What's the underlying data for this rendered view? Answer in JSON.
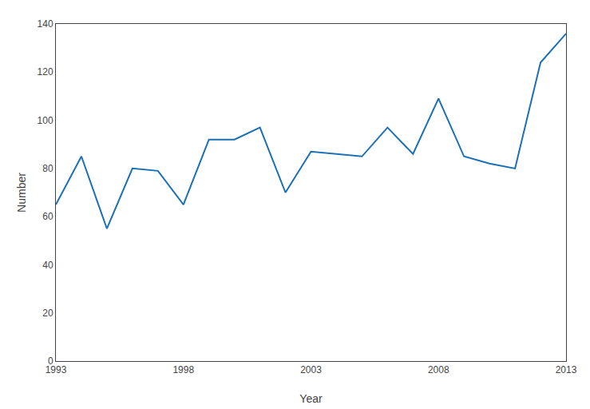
{
  "chart_data": {
    "type": "line",
    "x": [
      1993,
      1994,
      1995,
      1996,
      1997,
      1998,
      1999,
      2000,
      2001,
      2002,
      2003,
      2004,
      2005,
      2006,
      2007,
      2008,
      2009,
      2010,
      2011,
      2012,
      2013
    ],
    "values": [
      65,
      85,
      55,
      80,
      79,
      65,
      92,
      92,
      97,
      70,
      87,
      86,
      85,
      97,
      86,
      109,
      85,
      82,
      80,
      124,
      136
    ],
    "color": "#1a6fb5",
    "xlabel": "Year",
    "ylabel": "Number",
    "xlim": [
      1993,
      2013
    ],
    "ylim": [
      0,
      140
    ],
    "xticks": [
      1993,
      1998,
      2003,
      2008,
      2013
    ],
    "yticks": [
      0,
      20,
      40,
      60,
      80,
      100,
      120,
      140
    ],
    "grid": false
  }
}
